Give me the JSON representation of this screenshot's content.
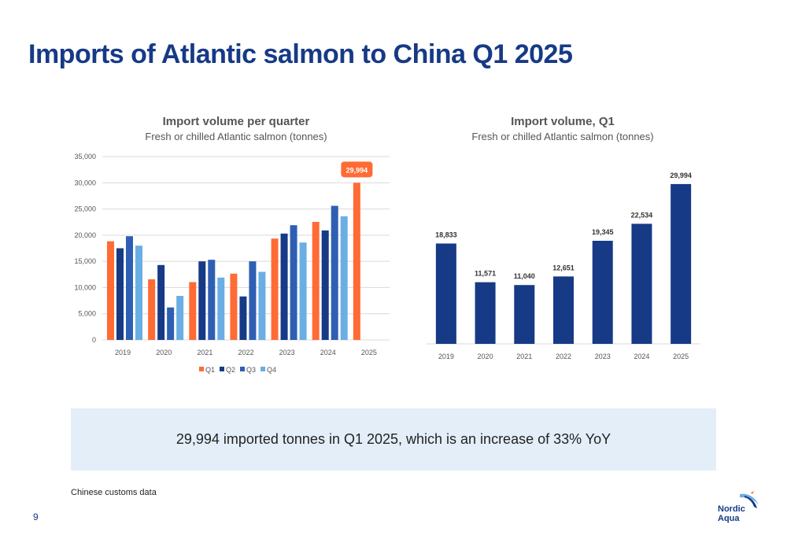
{
  "page": {
    "title": "Imports of Atlantic salmon to China Q1 2025",
    "callout": "29,994 imported tonnes in Q1 2025, which is an increase of 33% YoY",
    "source": "Chinese customs data",
    "page_number": "9",
    "logo_line1": "Nordic",
    "logo_line2": "Aqua"
  },
  "colors": {
    "q1": "#ff6b35",
    "q2": "#163a86",
    "q3": "#2f5fb3",
    "q4": "#6aaee3",
    "single": "#163a86",
    "title": "#163a86"
  },
  "chart_data": [
    {
      "type": "bar",
      "title": "Import volume per quarter",
      "subtitle": "Fresh or chilled Atlantic salmon (tonnes)",
      "categories": [
        "2019",
        "2020",
        "2021",
        "2022",
        "2023",
        "2024",
        "2025"
      ],
      "series": [
        {
          "name": "Q1",
          "values": [
            18833,
            11571,
            11040,
            12651,
            19345,
            22534,
            29994
          ]
        },
        {
          "name": "Q2",
          "values": [
            17500,
            14300,
            15000,
            8300,
            20300,
            20900,
            null
          ]
        },
        {
          "name": "Q3",
          "values": [
            19800,
            6200,
            15300,
            15000,
            21900,
            25600,
            null
          ]
        },
        {
          "name": "Q4",
          "values": [
            18000,
            8400,
            11900,
            13000,
            18600,
            23600,
            null
          ]
        }
      ],
      "ylim": [
        0,
        35000
      ],
      "yticks": [
        "0",
        "5,000",
        "10,000",
        "15,000",
        "20,000",
        "25,000",
        "30,000",
        "35,000"
      ],
      "highlight_label": "29,994",
      "legend": "bottom",
      "grid": true
    },
    {
      "type": "bar",
      "title": "Import volume, Q1",
      "subtitle": "Fresh or chilled Atlantic salmon (tonnes)",
      "categories": [
        "2019",
        "2020",
        "2021",
        "2022",
        "2023",
        "2024",
        "2025"
      ],
      "values": [
        18833,
        11571,
        11040,
        12651,
        19345,
        22534,
        29994
      ],
      "labels": [
        "18,833",
        "11,571",
        "11,040",
        "12,651",
        "19,345",
        "22,534",
        "29,994"
      ],
      "ylim": [
        0,
        35000
      ],
      "grid": false
    }
  ]
}
